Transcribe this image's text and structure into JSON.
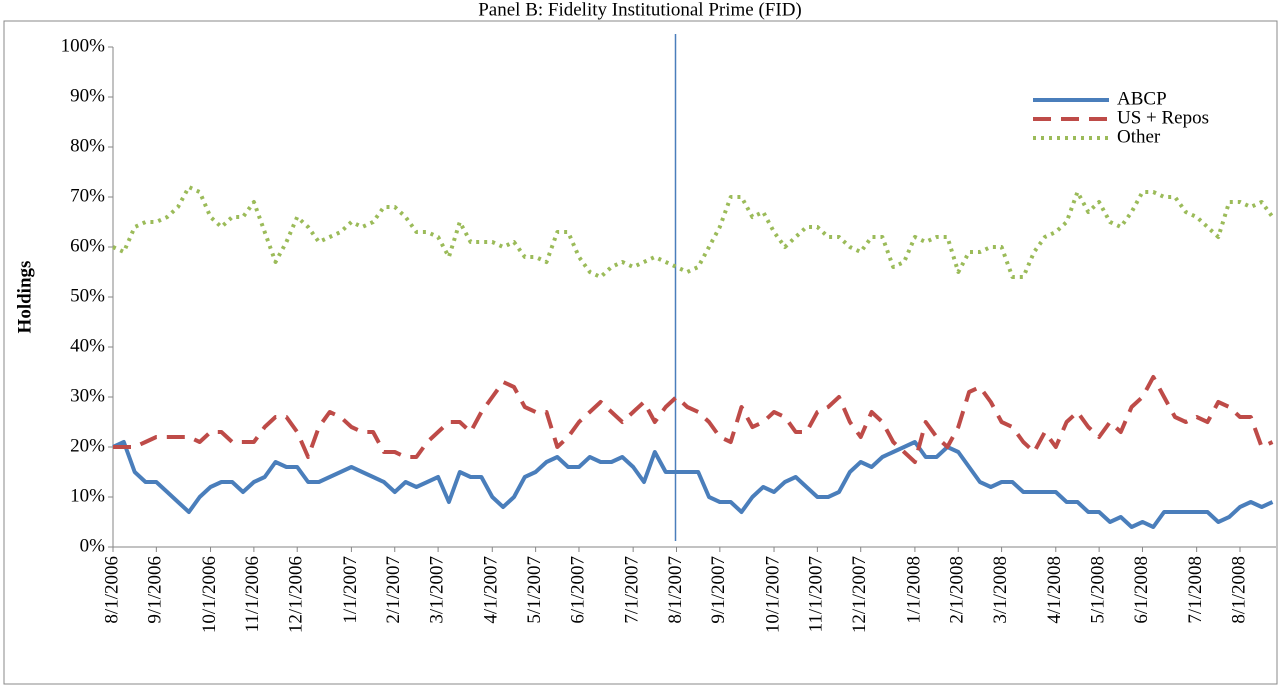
{
  "chart_data": {
    "type": "line",
    "title": "Panel B: Fidelity Institutional Prime (FID)",
    "y_label": "Holdings",
    "categories": [
      "8/1/2006",
      null,
      null,
      null,
      "9/1/2006",
      null,
      null,
      null,
      null,
      "10/1/2006",
      null,
      null,
      null,
      "11/1/2006",
      null,
      null,
      null,
      "12/1/2006",
      null,
      null,
      null,
      null,
      "1/1/2007",
      null,
      null,
      null,
      "2/1/2007",
      null,
      null,
      null,
      "3/1/2007",
      null,
      null,
      null,
      null,
      "4/1/2007",
      null,
      null,
      null,
      "5/1/2007",
      null,
      null,
      null,
      "6/1/2007",
      null,
      null,
      null,
      null,
      "7/1/2007",
      null,
      null,
      null,
      "8/1/2007",
      null,
      null,
      null,
      "9/1/2007",
      null,
      null,
      null,
      null,
      "10/1/2007",
      null,
      null,
      null,
      "11/1/2007",
      null,
      null,
      null,
      "12/1/2007",
      null,
      null,
      null,
      null,
      "1/1/2008",
      null,
      null,
      null,
      "2/1/2008",
      null,
      null,
      null,
      "3/1/2008",
      null,
      null,
      null,
      null,
      "4/1/2008",
      null,
      null,
      null,
      "5/1/2008",
      null,
      null,
      null,
      "6/1/2008",
      null,
      null,
      null,
      null,
      "7/1/2008",
      null,
      null,
      null,
      "8/1/2008",
      null,
      null,
      null
    ],
    "series": [
      {
        "name": "ABCP",
        "color": "#4a7ebb",
        "dash": "solid",
        "values": [
          20,
          21,
          15,
          13,
          13,
          11,
          9,
          7,
          10,
          12,
          13,
          13,
          11,
          13,
          14,
          17,
          16,
          16,
          13,
          13,
          14,
          15,
          16,
          15,
          14,
          13,
          11,
          13,
          12,
          13,
          14,
          9,
          15,
          14,
          14,
          10,
          8,
          10,
          14,
          15,
          17,
          18,
          16,
          16,
          18,
          17,
          17,
          18,
          16,
          13,
          19,
          15,
          15,
          15,
          15,
          10,
          9,
          9,
          7,
          10,
          12,
          11,
          13,
          14,
          12,
          10,
          10,
          11,
          15,
          17,
          16,
          18,
          19,
          20,
          21,
          18,
          18,
          20,
          19,
          16,
          13,
          12,
          13,
          13,
          11,
          11,
          11,
          11,
          9,
          9,
          7,
          7,
          5,
          6,
          4,
          5,
          4,
          7,
          7,
          7,
          7,
          7,
          5,
          6,
          8,
          9,
          8,
          9
        ]
      },
      {
        "name": "US + Repos",
        "color": "#be4b48",
        "dash": "dashed",
        "values": [
          20,
          20,
          20,
          21,
          22,
          22,
          22,
          22,
          21,
          23,
          23,
          21,
          21,
          21,
          24,
          26,
          26,
          23,
          18,
          24,
          27,
          26,
          24,
          23,
          23,
          19,
          19,
          18,
          18,
          21,
          23,
          25,
          25,
          23,
          27,
          30,
          33,
          32,
          28,
          27,
          27,
          20,
          22,
          25,
          27,
          29,
          27,
          25,
          27,
          29,
          25,
          28,
          30,
          28,
          27,
          25,
          22,
          21,
          28,
          24,
          25,
          27,
          26,
          23,
          23,
          27,
          28,
          30,
          25,
          22,
          27,
          25,
          21,
          19,
          17,
          25,
          22,
          20,
          24,
          31,
          32,
          29,
          25,
          24,
          21,
          19,
          23,
          20,
          25,
          27,
          24,
          22,
          25,
          23,
          28,
          30,
          34,
          30,
          26,
          25,
          26,
          25,
          29,
          28,
          26,
          26,
          20,
          21
        ]
      },
      {
        "name": "Other",
        "color": "#9bbb59",
        "dash": "dotted",
        "values": [
          60,
          59,
          64,
          65,
          65,
          66,
          68,
          72,
          71,
          66,
          64,
          66,
          66,
          69,
          63,
          57,
          61,
          66,
          64,
          61,
          62,
          63,
          65,
          64,
          65,
          68,
          68,
          66,
          63,
          63,
          62,
          58,
          65,
          61,
          61,
          61,
          60,
          61,
          58,
          58,
          57,
          63,
          63,
          58,
          55,
          54,
          56,
          57,
          56,
          57,
          58,
          57,
          56,
          55,
          56,
          60,
          64,
          70,
          70,
          66,
          67,
          63,
          60,
          62,
          64,
          64,
          62,
          62,
          60,
          59,
          62,
          62,
          56,
          57,
          62,
          61,
          62,
          62,
          55,
          59,
          59,
          60,
          60,
          54,
          54,
          59,
          62,
          63,
          65,
          71,
          67,
          69,
          65,
          64,
          67,
          71,
          71,
          70,
          70,
          67,
          66,
          64,
          62,
          69,
          69,
          68,
          69,
          66
        ]
      }
    ],
    "ylim": [
      0,
      100
    ],
    "yticks": [
      {
        "value": 0,
        "label": "0%"
      },
      {
        "value": 10,
        "label": "10%"
      },
      {
        "value": 20,
        "label": "20%"
      },
      {
        "value": 30,
        "label": "30%"
      },
      {
        "value": 40,
        "label": "40%"
      },
      {
        "value": 50,
        "label": "50%"
      },
      {
        "value": 60,
        "label": "60%"
      },
      {
        "value": 70,
        "label": "70%"
      },
      {
        "value": 80,
        "label": "80%"
      },
      {
        "value": 90,
        "label": "90%"
      },
      {
        "value": 100,
        "label": "100%"
      }
    ],
    "grid": false,
    "legend": "top-right"
  }
}
